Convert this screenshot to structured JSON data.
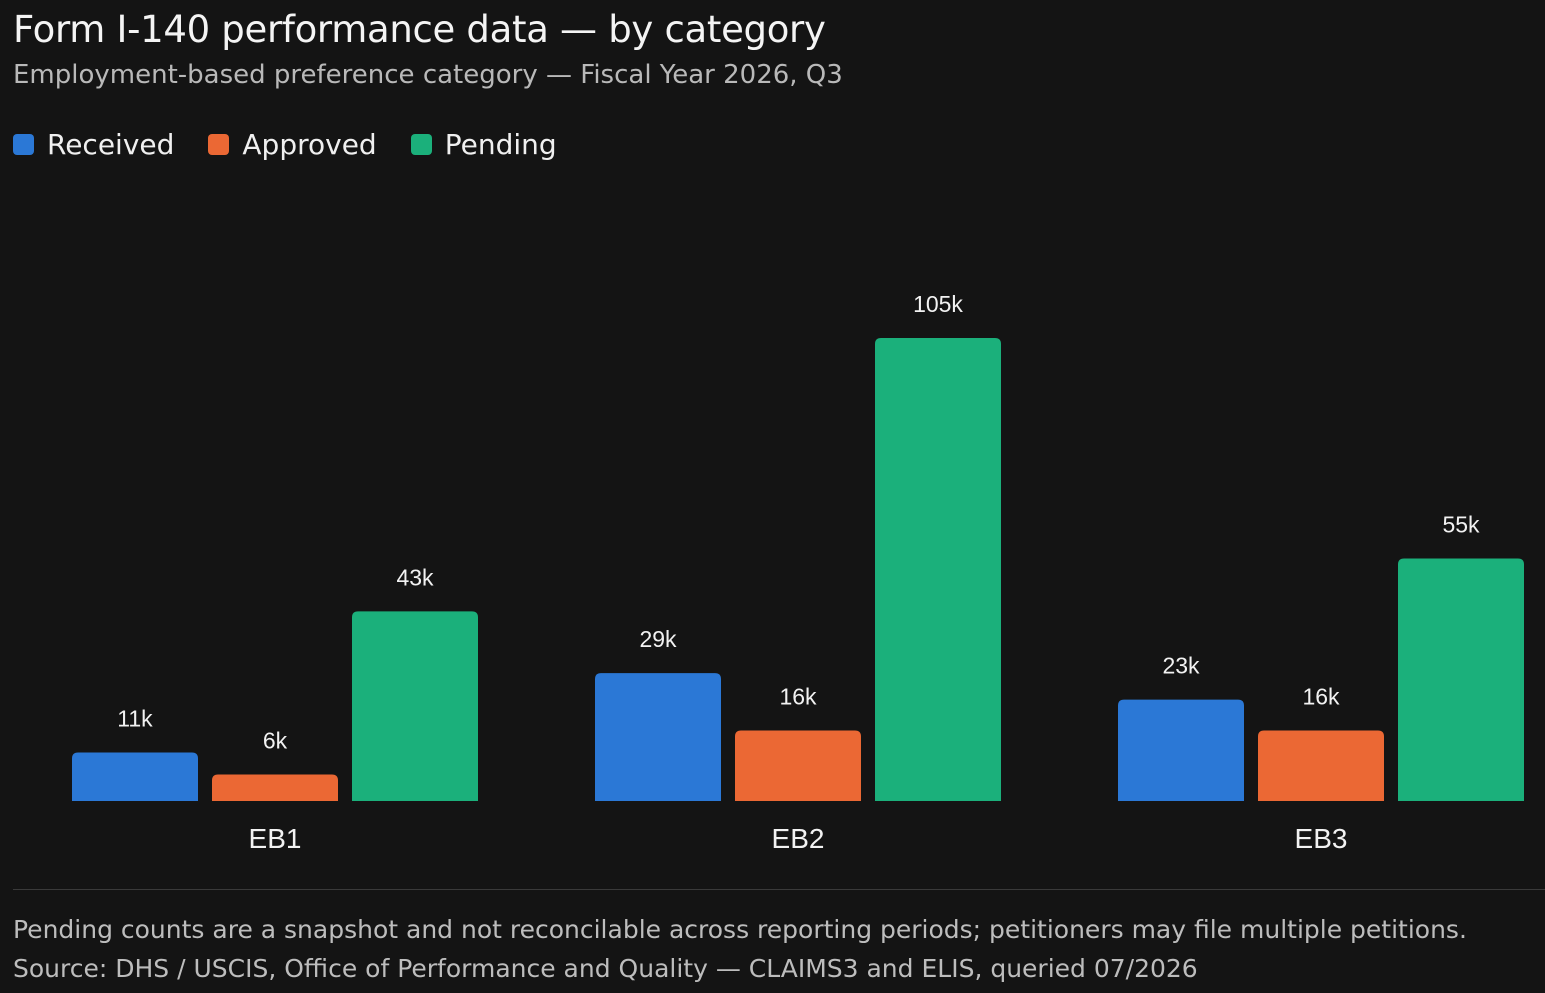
{
  "header": {
    "title": "Form I-140 performance data — by category",
    "subtitle": "Employment-based preference category — Fiscal Year 2026, Q3"
  },
  "legend": {
    "items": [
      {
        "label": "Received",
        "color": "#2b78d6"
      },
      {
        "label": "Approved",
        "color": "#eb6834"
      },
      {
        "label": "Pending",
        "color": "#1bb07b"
      }
    ]
  },
  "chart_data": {
    "type": "bar",
    "categories": [
      "EB1",
      "EB2",
      "EB3"
    ],
    "series": [
      {
        "name": "Received",
        "color": "#2b78d6",
        "values": [
          11,
          29,
          23
        ],
        "labels": [
          "11k",
          "29k",
          "23k"
        ]
      },
      {
        "name": "Approved",
        "color": "#eb6834",
        "values": [
          6,
          16,
          16
        ],
        "labels": [
          "6k",
          "16k",
          "16k"
        ]
      },
      {
        "name": "Pending",
        "color": "#1bb07b",
        "values": [
          43,
          105,
          55
        ],
        "labels": [
          "43k",
          "105k",
          "55k"
        ]
      }
    ],
    "title": "Form I-140 performance data — by category",
    "subtitle": "Employment-based preference category — Fiscal Year 2026, Q3",
    "xlabel": "",
    "ylabel": "",
    "ylim": [
      0,
      105
    ],
    "grid": false,
    "legend": "top-left"
  },
  "footer": {
    "note": "Pending counts are a snapshot and not reconcilable across reporting periods; petitioners may file multiple petitions.",
    "source": "Source: DHS / USCIS, Office of Performance and Quality — CLAIMS3 and ELIS, queried 07/2026"
  }
}
